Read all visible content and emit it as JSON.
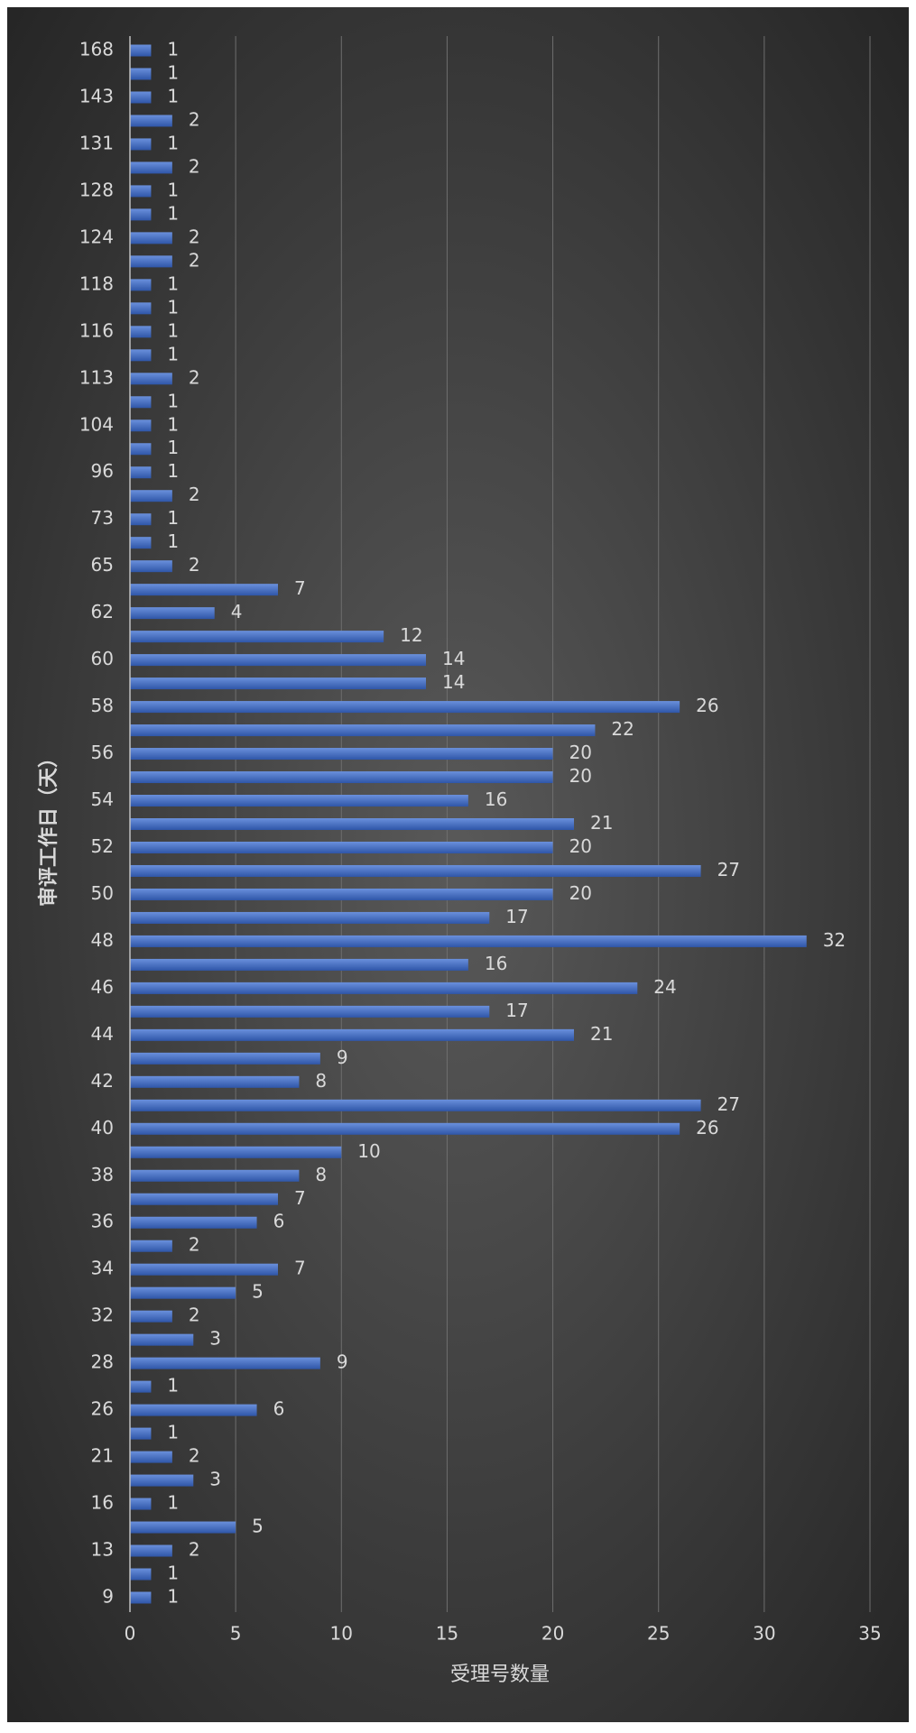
{
  "chart_data": {
    "type": "barh",
    "x_label": "受理号数量",
    "y_label": "审评工作日（天）",
    "categories": [
      "9",
      null,
      "13",
      null,
      "16",
      null,
      "21",
      null,
      "26",
      null,
      "28",
      null,
      "32",
      null,
      "34",
      null,
      "36",
      null,
      "38",
      null,
      "40",
      null,
      "42",
      null,
      "44",
      null,
      "46",
      null,
      "48",
      null,
      "50",
      null,
      "52",
      null,
      "54",
      null,
      "56",
      null,
      "58",
      null,
      "60",
      null,
      "62",
      null,
      "65",
      null,
      "73",
      null,
      "96",
      null,
      "104",
      null,
      "113",
      null,
      "116",
      null,
      "118",
      null,
      "124",
      null,
      "128",
      null,
      "131",
      null,
      "143",
      null,
      "168"
    ],
    "values": [
      1,
      1,
      2,
      5,
      1,
      3,
      2,
      1,
      6,
      1,
      9,
      3,
      2,
      5,
      7,
      2,
      6,
      7,
      8,
      10,
      26,
      27,
      8,
      9,
      21,
      17,
      24,
      16,
      32,
      17,
      20,
      27,
      20,
      21,
      16,
      20,
      20,
      22,
      26,
      14,
      14,
      12,
      4,
      7,
      2,
      1,
      1,
      2,
      1,
      1,
      1,
      1,
      2,
      1,
      1,
      1,
      1,
      2,
      2,
      1,
      1,
      2,
      1,
      2,
      1,
      1,
      1
    ],
    "color": "#4a72c8",
    "xlim": [
      0,
      35
    ],
    "xticks": [
      0,
      5,
      10,
      15,
      20,
      25,
      30,
      35
    ],
    "grid": true
  }
}
